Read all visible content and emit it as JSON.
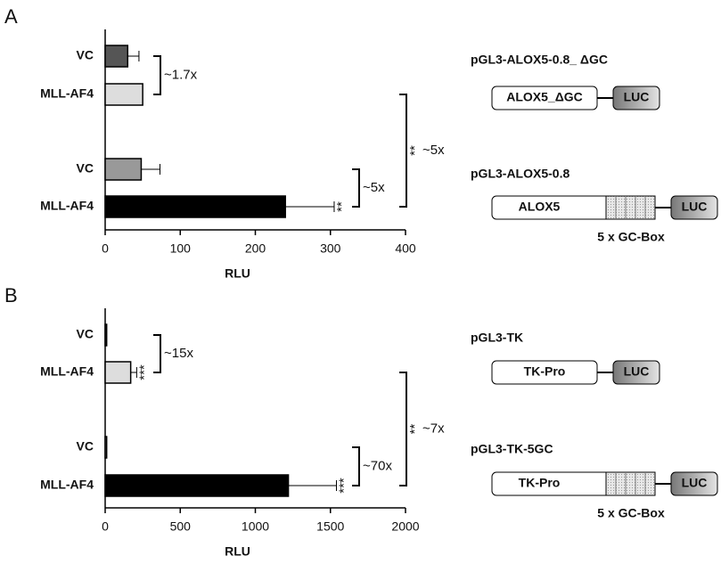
{
  "chart_data": [
    {
      "type": "bar",
      "orientation": "horizontal",
      "panel": "A",
      "categories": [
        "VC",
        "MLL-AF4",
        "VC",
        "MLL-AF4"
      ],
      "values": [
        30,
        50,
        48,
        240
      ],
      "errors": [
        15,
        null,
        25,
        65
      ],
      "colors": [
        "#555555",
        "#dddddd",
        "#999999",
        "#000000"
      ],
      "significance": [
        null,
        null,
        null,
        "**"
      ],
      "comparisons": [
        {
          "label": "~1.7x"
        },
        {
          "label": "~5x"
        },
        {
          "significance": "**",
          "label": "~5x"
        }
      ],
      "xlim": [
        0,
        400
      ],
      "xticks": [
        0,
        100,
        200,
        300,
        400
      ],
      "xlabel": "RLU"
    },
    {
      "type": "bar",
      "orientation": "horizontal",
      "panel": "B",
      "categories": [
        "VC",
        "MLL-AF4",
        "VC",
        "MLL-AF4"
      ],
      "values": [
        10,
        170,
        10,
        1220
      ],
      "errors": [
        null,
        40,
        null,
        320
      ],
      "colors": [
        "#555555",
        "#dddddd",
        "#999999",
        "#000000"
      ],
      "significance": [
        null,
        "***",
        null,
        "***"
      ],
      "comparisons": [
        {
          "label": "~15x"
        },
        {
          "label": "~70x"
        },
        {
          "significance": "**",
          "label": "~7x"
        }
      ],
      "xlim": [
        0,
        2000
      ],
      "xticks": [
        0,
        500,
        1000,
        1500,
        2000
      ],
      "xlabel": "RLU"
    }
  ],
  "constructs": [
    {
      "title": "pGL3-ALOX5-0.8_ ΔGC",
      "box": "ALOX5_ΔGC",
      "luc": "LUC"
    },
    {
      "title": "pGL3-ALOX5-0.8",
      "box": "ALOX5",
      "luc": "LUC",
      "gc": "5 x GC-Box"
    },
    {
      "title": "pGL3-TK",
      "box": "TK-Pro",
      "luc": "LUC"
    },
    {
      "title": "pGL3-TK-5GC",
      "box": "TK-Pro",
      "luc": "LUC",
      "gc": "5 x GC-Box"
    }
  ]
}
